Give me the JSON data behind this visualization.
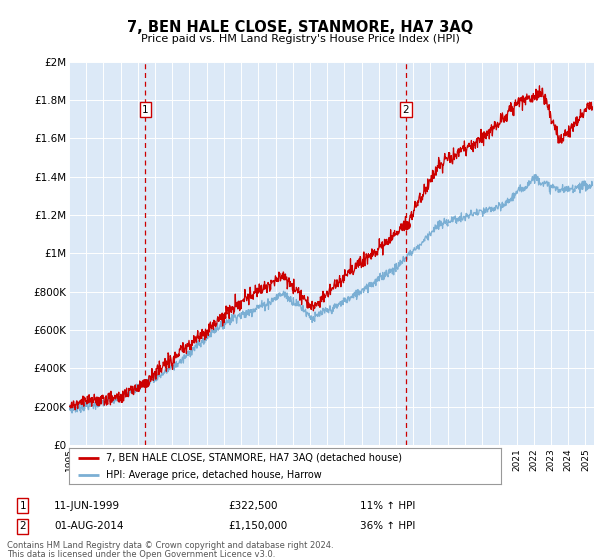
{
  "title": "7, BEN HALE CLOSE, STANMORE, HA7 3AQ",
  "subtitle": "Price paid vs. HM Land Registry's House Price Index (HPI)",
  "legend_line1": "7, BEN HALE CLOSE, STANMORE, HA7 3AQ (detached house)",
  "legend_line2": "HPI: Average price, detached house, Harrow",
  "annotation1_label": "1",
  "annotation1_date": "11-JUN-1999",
  "annotation1_price": "£322,500",
  "annotation1_hpi": "11% ↑ HPI",
  "annotation2_label": "2",
  "annotation2_date": "01-AUG-2014",
  "annotation2_price": "£1,150,000",
  "annotation2_hpi": "36% ↑ HPI",
  "footer_line1": "Contains HM Land Registry data © Crown copyright and database right 2024.",
  "footer_line2": "This data is licensed under the Open Government Licence v3.0.",
  "line1_color": "#cc0000",
  "line2_color": "#7bafd4",
  "background_color": "#ffffff",
  "plot_bg_color": "#dce9f7",
  "grid_color": "#ffffff",
  "anno_vline_color": "#cc0000",
  "anno_box_color": "#cc0000",
  "ylim": [
    0,
    2000000
  ],
  "yticks": [
    0,
    200000,
    400000,
    600000,
    800000,
    1000000,
    1200000,
    1400000,
    1600000,
    1800000,
    2000000
  ],
  "ytick_labels": [
    "£0",
    "£200K",
    "£400K",
    "£600K",
    "£800K",
    "£1M",
    "£1.2M",
    "£1.4M",
    "£1.6M",
    "£1.8M",
    "£2M"
  ],
  "xmin": 1995,
  "xmax": 2025.5,
  "sale1_x": 1999.44,
  "sale1_y": 322500,
  "sale2_x": 2014.58,
  "sale2_y": 1150000
}
